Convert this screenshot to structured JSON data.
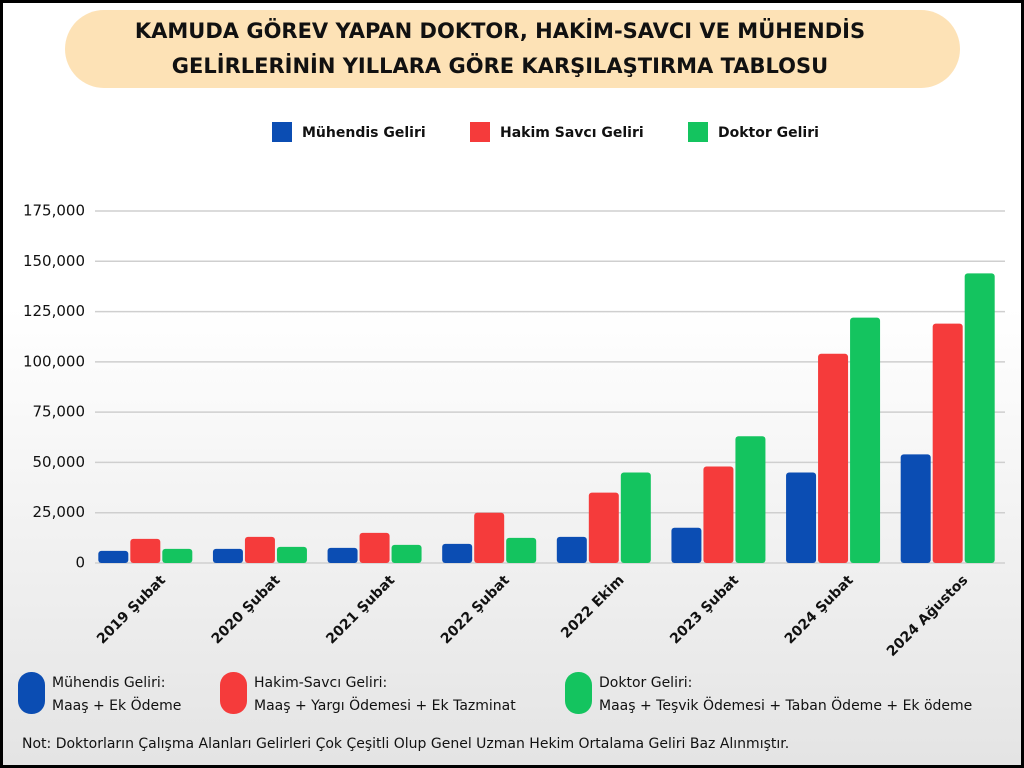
{
  "chart_data": {
    "type": "bar",
    "title": [
      "KAMUDA GÖREV YAPAN DOKTOR, HAKİM-SAVCI VE MÜHENDİS",
      "GELİRLERİNİN YILLARA GÖRE KARŞILAŞTIRMA TABLOSU"
    ],
    "categories": [
      "2019 Şubat",
      "2020 Şubat",
      "2021 Şubat",
      "2022 Şubat",
      "2022 Ekim",
      "2023 Şubat",
      "2024 Şubat",
      "2024 Ağustos"
    ],
    "series": [
      {
        "name": "Mühendis Geliri",
        "color": "#0b4db3",
        "values": [
          6000,
          7000,
          7500,
          9500,
          13000,
          17500,
          45000,
          54000
        ]
      },
      {
        "name": "Hakim Savcı Geliri",
        "color": "#f53b3b",
        "values": [
          12000,
          13000,
          15000,
          25000,
          35000,
          48000,
          104000,
          119000
        ]
      },
      {
        "name": "Doktor Geliri",
        "color": "#14c45f",
        "values": [
          7000,
          8000,
          9000,
          12500,
          45000,
          63000,
          122000,
          144000
        ]
      }
    ],
    "ylim": [
      0,
      175000
    ],
    "yticks": [
      0,
      {
        "value": 25000,
        "label": "25,000"
      },
      {
        "value": 50000,
        "label": "50,000"
      },
      {
        "value": 75000,
        "label": "75,000"
      },
      {
        "value": 100000,
        "label": "100,000"
      },
      {
        "value": 125000,
        "label": "125,000"
      },
      {
        "value": 150000,
        "label": "150,000"
      },
      {
        "value": 175000,
        "label": "175,000"
      }
    ],
    "grid": true,
    "legend_notes": [
      {
        "name": "Mühendis Geliri:",
        "detail": "Maaş  +  Ek Ödeme"
      },
      {
        "name": "Hakim-Savcı Geliri:",
        "detail": "Maaş + Yargı Ödemesi + Ek Tazminat"
      },
      {
        "name": "Doktor Geliri:",
        "detail": "Maaş + Teşvik Ödemesi + Taban Ödeme + Ek ödeme"
      }
    ],
    "note": "Not: Doktorların Çalışma Alanları Gelirleri Çok Çeşitli Olup Genel Uzman Hekim Ortalama Geliri Baz Alınmıştır."
  }
}
